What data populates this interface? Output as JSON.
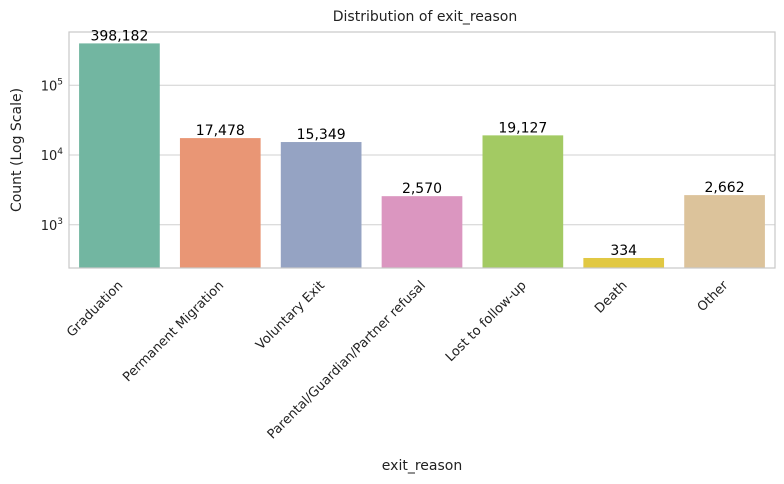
{
  "chart_data": {
    "type": "bar",
    "title": "Distribution of exit_reason",
    "xlabel": "exit_reason",
    "ylabel": "Count (Log Scale)",
    "yscale": "log",
    "ylim": [
      240,
      580000
    ],
    "yticks": [
      1000,
      10000,
      100000
    ],
    "ytick_labels": [
      {
        "base": "10",
        "exp": "3"
      },
      {
        "base": "10",
        "exp": "4"
      },
      {
        "base": "10",
        "exp": "5"
      }
    ],
    "grid": "horizontal",
    "categories": [
      "Graduation",
      "Permanent Migration",
      "Voluntary Exit",
      "Parental/Guardian/Partner refusal",
      "Lost to follow-up",
      "Death",
      "Other"
    ],
    "values": [
      398182,
      17478,
      15349,
      2570,
      19127,
      334,
      2662
    ],
    "value_labels": [
      "398,182",
      "17,478",
      "15,349",
      "2,570",
      "19,127",
      "334",
      "2,662"
    ],
    "colors": [
      "#72b6a1",
      "#e99675",
      "#95a3c3",
      "#db96c0",
      "#a3ca63",
      "#e1c843",
      "#dcc39b"
    ]
  }
}
